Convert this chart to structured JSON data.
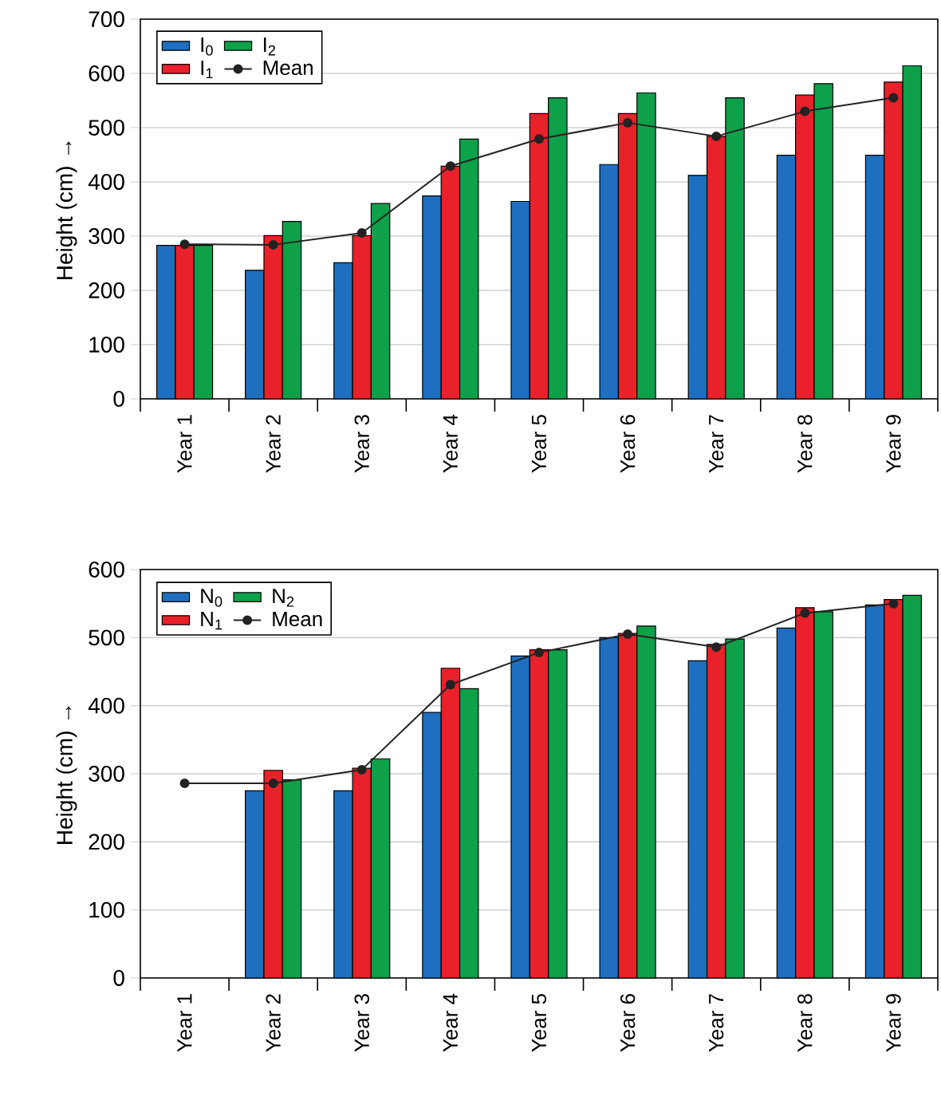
{
  "chart_data": [
    {
      "type": "bar",
      "ylabel": "Height (cm) →",
      "categories": [
        "Year 1",
        "Year 2",
        "Year 3",
        "Year 4",
        "Year 5",
        "Year 6",
        "Year 7",
        "Year 8",
        "Year 9"
      ],
      "ylim": [
        0,
        700
      ],
      "yticks": [
        0,
        100,
        200,
        300,
        400,
        500,
        600,
        700
      ],
      "grid": "y",
      "legend": "top left",
      "series": [
        {
          "name": "I$_{0}$",
          "color": "#1f6fc0",
          "values": [
            283,
            237,
            251,
            374,
            364,
            432,
            412,
            449,
            449
          ]
        },
        {
          "name": "I$_{1}$",
          "color": "#e8212a",
          "values": [
            283,
            301,
            301,
            429,
            526,
            526,
            484,
            560,
            584
          ]
        },
        {
          "name": "I$_{2}$",
          "color": "#0fa04a",
          "values": [
            283,
            327,
            360,
            479,
            555,
            564,
            555,
            581,
            614
          ]
        },
        {
          "name": "Mean",
          "type": "line",
          "color": "#222222",
          "marker": "circle",
          "values": [
            285,
            284,
            306,
            429,
            479,
            509,
            484,
            530,
            555
          ]
        }
      ]
    },
    {
      "type": "bar",
      "ylabel": "Height (cm) →",
      "categories": [
        "Year 1",
        "Year 2",
        "Year 3",
        "Year 4",
        "Year 5",
        "Year 6",
        "Year 7",
        "Year 8",
        "Year 9"
      ],
      "ylim": [
        0,
        600
      ],
      "yticks": [
        0,
        100,
        200,
        300,
        400,
        500,
        600
      ],
      "grid": "y",
      "legend": "top left",
      "series": [
        {
          "name": "N$_{0}$",
          "color": "#1f6fc0",
          "values": [
            null,
            275,
            275,
            390,
            473,
            500,
            466,
            514,
            548
          ]
        },
        {
          "name": "N$_{1}$",
          "color": "#e8212a",
          "values": [
            null,
            305,
            308,
            455,
            482,
            506,
            490,
            544,
            556
          ]
        },
        {
          "name": "N$_{2}$",
          "color": "#0fa04a",
          "values": [
            null,
            291,
            322,
            425,
            482,
            517,
            498,
            538,
            562
          ]
        },
        {
          "name": "Mean",
          "type": "line",
          "color": "#222222",
          "marker": "circle",
          "values": [
            286,
            286,
            306,
            431,
            478,
            505,
            486,
            536,
            550
          ]
        }
      ]
    }
  ]
}
